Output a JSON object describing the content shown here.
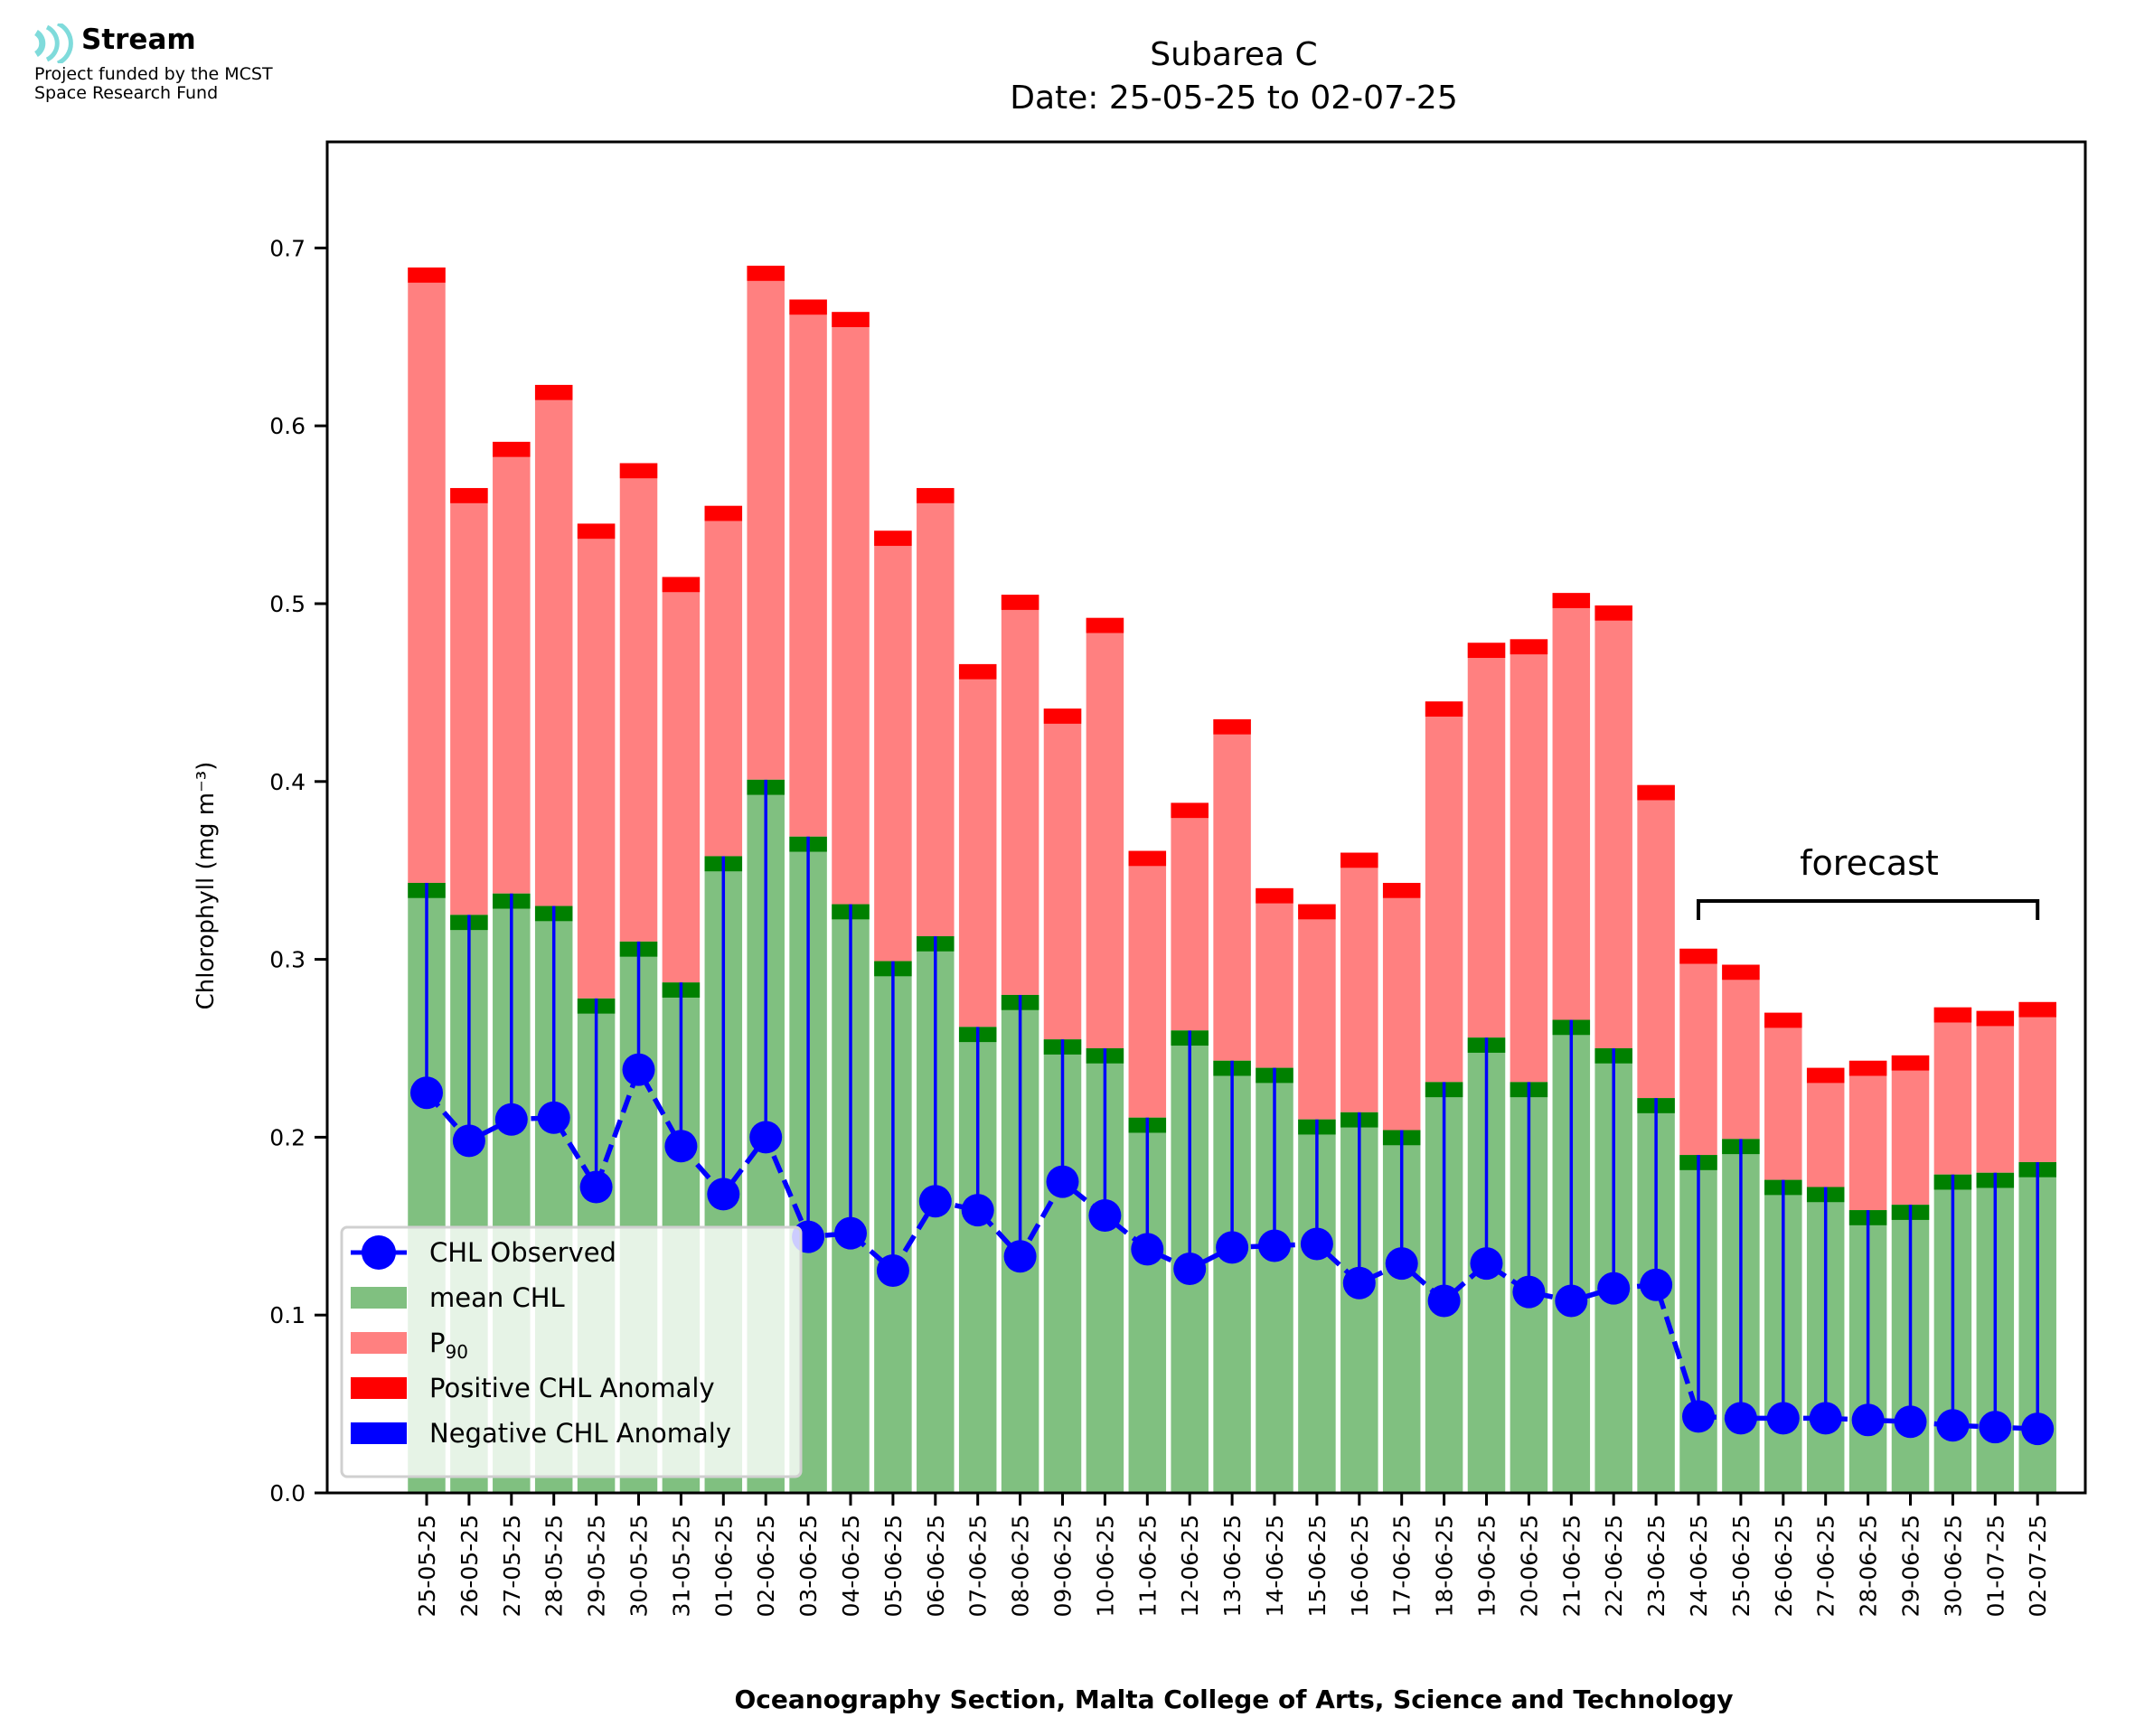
{
  "logo": {
    "icon": "stream-waves-icon",
    "name": "Stream",
    "line1": "Project funded by the MCST",
    "line2": "Space Research Fund",
    "color": "#7fdbdb"
  },
  "chart_data": {
    "type": "bar",
    "title": "Subarea C",
    "subtitle": "Date: 25-05-25 to 02-07-25",
    "xlabel": "Oceanography Section, Malta College of Arts, Science and Technology",
    "ylabel": "Chlorophyll (mg m⁻³)",
    "ylim": [
      0,
      0.76
    ],
    "yticks": [
      0.0,
      0.1,
      0.2,
      0.3,
      0.4,
      0.5,
      0.6,
      0.7
    ],
    "ytick_labels": [
      "0.0",
      "0.1",
      "0.2",
      "0.3",
      "0.4",
      "0.5",
      "0.6",
      "0.7"
    ],
    "grid": false,
    "legend_position": "bottom-left",
    "categories": [
      "25-05-25",
      "26-05-25",
      "27-05-25",
      "28-05-25",
      "29-05-25",
      "30-05-25",
      "31-05-25",
      "01-06-25",
      "02-06-25",
      "03-06-25",
      "04-06-25",
      "05-06-25",
      "06-06-25",
      "07-06-25",
      "08-06-25",
      "09-06-25",
      "10-06-25",
      "11-06-25",
      "12-06-25",
      "13-06-25",
      "14-06-25",
      "15-06-25",
      "16-06-25",
      "17-06-25",
      "18-06-25",
      "19-06-25",
      "20-06-25",
      "21-06-25",
      "22-06-25",
      "23-06-25",
      "24-06-25",
      "25-06-25",
      "26-06-25",
      "27-06-25",
      "28-06-25",
      "29-06-25",
      "30-06-25",
      "01-07-25",
      "02-07-25"
    ],
    "series": [
      {
        "name": "mean CHL",
        "color": "#80c080",
        "values": [
          0.343,
          0.325,
          0.337,
          0.33,
          0.278,
          0.31,
          0.287,
          0.358,
          0.401,
          0.369,
          0.331,
          0.299,
          0.313,
          0.262,
          0.28,
          0.255,
          0.25,
          0.211,
          0.26,
          0.243,
          0.239,
          0.21,
          0.214,
          0.204,
          0.231,
          0.256,
          0.231,
          0.266,
          0.25,
          0.222,
          0.19,
          0.199,
          0.176,
          0.172,
          0.159,
          0.162,
          0.179,
          0.18,
          0.186
        ]
      },
      {
        "name": "P₉₀",
        "color": "#ff8080",
        "values": [
          0.689,
          0.565,
          0.591,
          0.623,
          0.545,
          0.579,
          0.515,
          0.555,
          0.69,
          0.671,
          0.664,
          0.541,
          0.565,
          0.466,
          0.505,
          0.441,
          0.492,
          0.361,
          0.388,
          0.435,
          0.34,
          0.331,
          0.36,
          0.343,
          0.445,
          0.478,
          0.48,
          0.506,
          0.499,
          0.398,
          0.306,
          0.297,
          0.27,
          0.239,
          0.243,
          0.246,
          0.273,
          0.271,
          0.276
        ]
      },
      {
        "name": "CHL Observed",
        "color": "#0000ff",
        "values": [
          0.225,
          0.198,
          0.21,
          0.211,
          0.172,
          0.238,
          0.195,
          0.168,
          0.2,
          0.144,
          0.146,
          0.125,
          0.164,
          0.159,
          0.133,
          0.175,
          0.156,
          0.137,
          0.126,
          0.138,
          0.139,
          0.14,
          0.118,
          0.129,
          0.108,
          0.129,
          0.113,
          0.108,
          0.115,
          0.117,
          0.043,
          0.042,
          0.042,
          0.042,
          0.041,
          0.04,
          0.038,
          0.037,
          0.036
        ]
      }
    ],
    "mean_band_color": "#008000",
    "p90_band_color": "#ff0000",
    "legend": [
      {
        "label": "CHL Observed",
        "kind": "line-marker",
        "color": "#0000ff"
      },
      {
        "label": "mean CHL",
        "kind": "patch",
        "color": "#80c080"
      },
      {
        "label": "P",
        "sub": "90",
        "kind": "patch",
        "color": "#ff8080"
      },
      {
        "label": "Positive CHL Anomaly",
        "kind": "patch",
        "color": "#ff0000"
      },
      {
        "label": "Negative CHL Anomaly",
        "kind": "patch",
        "color": "#0000ff"
      }
    ],
    "annotation": {
      "text": "forecast",
      "from": "24-06-25",
      "to": "02-07-25"
    }
  }
}
